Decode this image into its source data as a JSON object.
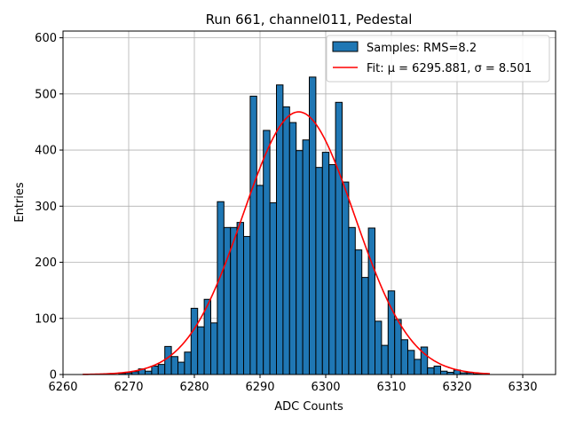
{
  "chart_data": {
    "type": "bar",
    "title": "Run 661, channel011, Pedestal",
    "xlabel": "ADC Counts",
    "ylabel": "Entries",
    "xlim": [
      6260,
      6335
    ],
    "ylim": [
      0,
      612
    ],
    "xticks": [
      6260,
      6270,
      6280,
      6290,
      6300,
      6310,
      6320,
      6330
    ],
    "yticks": [
      0,
      100,
      200,
      300,
      400,
      500,
      600
    ],
    "grid": true,
    "bin_width": 1,
    "bin_centers": [
      6269,
      6270,
      6271,
      6272,
      6273,
      6274,
      6275,
      6276,
      6277,
      6278,
      6279,
      6280,
      6281,
      6282,
      6283,
      6284,
      6285,
      6286,
      6287,
      6288,
      6289,
      6290,
      6291,
      6292,
      6293,
      6294,
      6295,
      6296,
      6297,
      6298,
      6299,
      6300,
      6301,
      6302,
      6303,
      6304,
      6305,
      6306,
      6307,
      6308,
      6309,
      6310,
      6311,
      6312,
      6313,
      6314,
      6315,
      6316,
      6317,
      6318,
      6319,
      6320,
      6321,
      6322,
      6323,
      6324
    ],
    "values": [
      2,
      3,
      5,
      10,
      6,
      15,
      18,
      50,
      32,
      22,
      40,
      118,
      85,
      134,
      92,
      308,
      262,
      262,
      271,
      246,
      496,
      337,
      435,
      306,
      516,
      477,
      449,
      399,
      418,
      530,
      369,
      396,
      374,
      485,
      343,
      262,
      222,
      173,
      261,
      95,
      52,
      149,
      98,
      62,
      43,
      27,
      49,
      12,
      15,
      6,
      4,
      8,
      3,
      3,
      1,
      1
    ],
    "legend": {
      "position": "top-right",
      "entries": [
        {
          "label": "Samples: RMS=8.2",
          "kind": "patch",
          "color": "#1f77b4"
        },
        {
          "label": "Fit: μ = 6295.881, σ = 8.501",
          "kind": "line",
          "color": "#ff0000"
        }
      ]
    },
    "fit": {
      "type": "gaussian",
      "mu": 6295.881,
      "sigma": 8.501,
      "amplitude": 468,
      "x_range": [
        6263,
        6325
      ],
      "color": "#ff0000"
    },
    "bar_color": "#1f77b4"
  }
}
